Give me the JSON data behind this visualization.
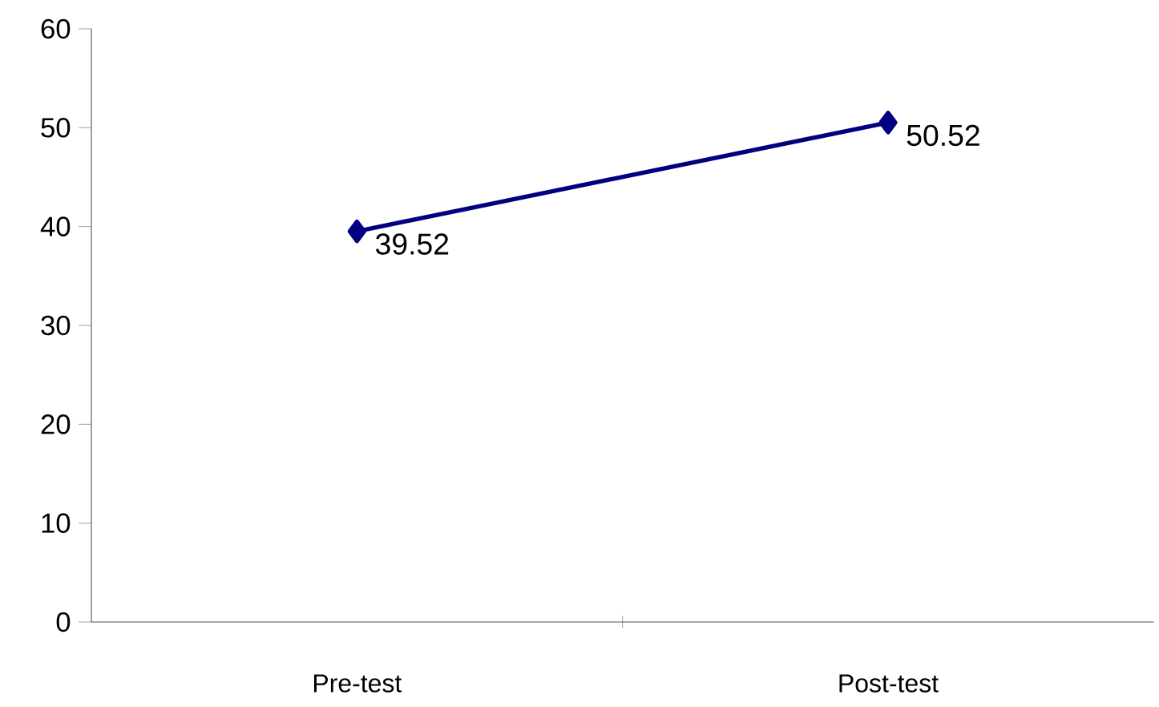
{
  "chart_data": {
    "type": "line",
    "categories": [
      "Pre-test",
      "Post-test"
    ],
    "series": [
      {
        "color": "#000080",
        "values": [
          39.52,
          50.52
        ]
      }
    ],
    "ylim": [
      0,
      60
    ],
    "yticks": [
      0,
      10,
      20,
      30,
      40,
      50,
      60
    ],
    "marker": "diamond",
    "line_style": "solid",
    "data_labels": true
  }
}
